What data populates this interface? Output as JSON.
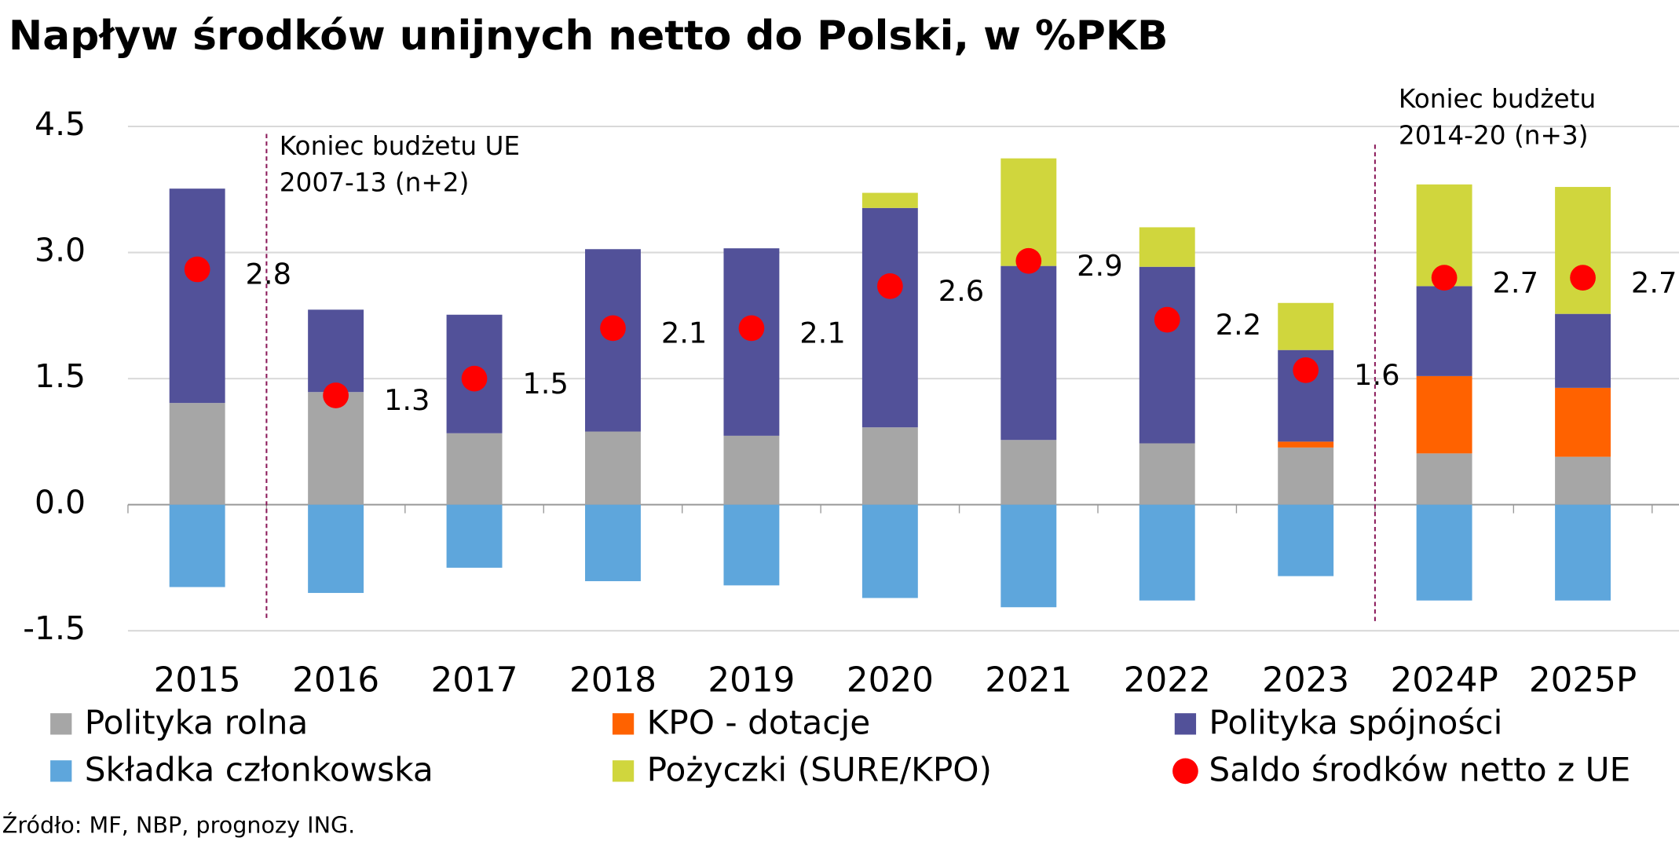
{
  "chart_data": {
    "type": "bar",
    "stacked": true,
    "title": "Napływ środków unijnych netto do Polski, w %PKB",
    "categories": [
      "2015",
      "2016",
      "2017",
      "2018",
      "2019",
      "2020",
      "2021",
      "2022",
      "2023",
      "2024P",
      "2025P"
    ],
    "series": [
      {
        "name": "Polityka rolna",
        "color": "#a6a6a6",
        "values": [
          1.21,
          1.34,
          0.85,
          0.87,
          0.82,
          0.92,
          0.77,
          0.73,
          0.68,
          0.61,
          0.57
        ]
      },
      {
        "name": "KPO - dotacje",
        "color": "#ff6200",
        "values": [
          0,
          0,
          0,
          0,
          0,
          0,
          0,
          0,
          0.07,
          0.92,
          0.82
        ]
      },
      {
        "name": "Polityka spójności",
        "color": "#525199",
        "values": [
          2.55,
          0.98,
          1.41,
          2.17,
          2.23,
          2.61,
          2.07,
          2.1,
          1.09,
          1.07,
          0.88
        ]
      },
      {
        "name": "Składka członkowska",
        "color": "#5ea6dc",
        "values": [
          -0.98,
          -1.05,
          -0.75,
          -0.91,
          -0.96,
          -1.11,
          -1.22,
          -1.14,
          -0.85,
          -1.14,
          -1.14
        ]
      },
      {
        "name": "Pożyczki (SURE/KPO)",
        "color": "#d0d63d",
        "values": [
          0,
          0,
          0,
          0,
          0,
          0.18,
          1.28,
          0.47,
          0.56,
          1.21,
          1.51
        ]
      },
      {
        "name": "Saldo środków netto z UE",
        "color": "#ff0000",
        "type": "scatter",
        "values": [
          2.8,
          1.3,
          1.5,
          2.1,
          2.1,
          2.6,
          2.9,
          2.2,
          1.6,
          2.7,
          2.7
        ]
      }
    ],
    "ylim": [
      -1.5,
      4.5
    ],
    "yticks": [
      -1.5,
      {
        "value": 0,
        "label": "0.0"
      },
      1.5,
      {
        "value": 3,
        "label": "3.0"
      },
      4.5
    ],
    "grid": true,
    "annotations": [
      {
        "lines": [
          "Koniec budżetu UE",
          "2007-13 (n+2)"
        ]
      },
      {
        "lines": [
          "Koniec budżetu",
          "2014-20 (n+3)"
        ]
      }
    ],
    "source": "Źródło: MF, NBP, prognozy ING."
  }
}
